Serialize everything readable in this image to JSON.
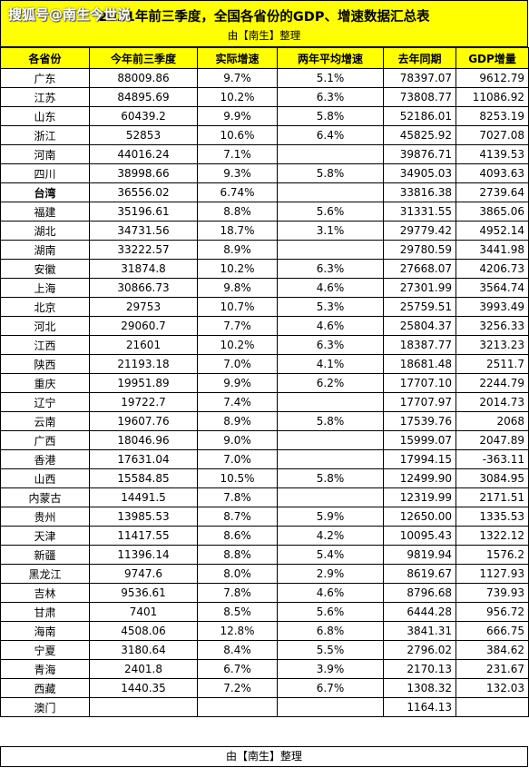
{
  "header": {
    "title": "2021年前三季度，全国各省份的GDP、增速数据汇总表",
    "subtitle": "由【南生】整理",
    "watermark": "搜狐号@南生今世说"
  },
  "table": {
    "columns": [
      "各省份",
      "今年前三季度",
      "实际增速",
      "两年平均增速",
      "去年同期",
      "GDP增量"
    ],
    "rows": [
      [
        "广东",
        "88009.86",
        "9.7%",
        "5.1%",
        "78397.07",
        "9612.79"
      ],
      [
        "江苏",
        "84895.69",
        "10.2%",
        "6.3%",
        "73808.77",
        "11086.92"
      ],
      [
        "山东",
        "60439.2",
        "9.9%",
        "5.8%",
        "52186.01",
        "8253.19"
      ],
      [
        "浙江",
        "52853",
        "10.6%",
        "6.4%",
        "45825.92",
        "7027.08"
      ],
      [
        "河南",
        "44016.24",
        "7.1%",
        "",
        "39876.71",
        "4139.53"
      ],
      [
        "四川",
        "38998.66",
        "9.3%",
        "5.8%",
        "34905.03",
        "4093.63"
      ],
      [
        "台湾",
        "36556.02",
        "6.74%",
        "",
        "33816.38",
        "2739.64"
      ],
      [
        "福建",
        "35196.61",
        "8.8%",
        "5.6%",
        "31331.55",
        "3865.06"
      ],
      [
        "湖北",
        "34731.56",
        "18.7%",
        "3.1%",
        "29779.42",
        "4952.14"
      ],
      [
        "湖南",
        "33222.57",
        "8.9%",
        "",
        "29780.59",
        "3441.98"
      ],
      [
        "安徽",
        "31874.8",
        "10.2%",
        "6.3%",
        "27668.07",
        "4206.73"
      ],
      [
        "上海",
        "30866.73",
        "9.8%",
        "4.6%",
        "27301.99",
        "3564.74"
      ],
      [
        "北京",
        "29753",
        "10.7%",
        "5.3%",
        "25759.51",
        "3993.49"
      ],
      [
        "河北",
        "29060.7",
        "7.7%",
        "4.6%",
        "25804.37",
        "3256.33"
      ],
      [
        "江西",
        "21601",
        "10.2%",
        "6.3%",
        "18387.77",
        "3213.23"
      ],
      [
        "陕西",
        "21193.18",
        "7.0%",
        "4.1%",
        "18681.48",
        "2511.7"
      ],
      [
        "重庆",
        "19951.89",
        "9.9%",
        "6.2%",
        "17707.10",
        "2244.79"
      ],
      [
        "辽宁",
        "19722.7",
        "7.4%",
        "",
        "17707.97",
        "2014.73"
      ],
      [
        "云南",
        "19607.76",
        "8.9%",
        "5.8%",
        "17539.76",
        "2068"
      ],
      [
        "广西",
        "18046.96",
        "9.0%",
        "",
        "15999.07",
        "2047.89"
      ],
      [
        "香港",
        "17631.04",
        "7.0%",
        "",
        "17994.15",
        "-363.11"
      ],
      [
        "山西",
        "15584.85",
        "10.5%",
        "5.8%",
        "12499.90",
        "3084.95"
      ],
      [
        "内蒙古",
        "14491.5",
        "7.8%",
        "",
        "12319.99",
        "2171.51"
      ],
      [
        "贵州",
        "13985.53",
        "8.7%",
        "5.9%",
        "12650.00",
        "1335.53"
      ],
      [
        "天津",
        "11417.55",
        "8.6%",
        "4.2%",
        "10095.43",
        "1322.12"
      ],
      [
        "新疆",
        "11396.14",
        "8.8%",
        "5.4%",
        "9819.94",
        "1576.2"
      ],
      [
        "黑龙江",
        "9747.6",
        "8.0%",
        "2.9%",
        "8619.67",
        "1127.93"
      ],
      [
        "吉林",
        "9536.61",
        "7.8%",
        "4.6%",
        "8796.68",
        "739.93"
      ],
      [
        "甘肃",
        "7401",
        "8.5%",
        "5.6%",
        "6444.28",
        "956.72"
      ],
      [
        "海南",
        "4508.06",
        "12.8%",
        "6.8%",
        "3841.31",
        "666.75"
      ],
      [
        "宁夏",
        "3180.64",
        "8.4%",
        "5.5%",
        "2796.02",
        "384.62"
      ],
      [
        "青海",
        "2401.8",
        "6.7%",
        "3.9%",
        "2170.13",
        "231.67"
      ],
      [
        "西藏",
        "1440.35",
        "7.2%",
        "6.7%",
        "1308.32",
        "132.03"
      ],
      [
        "澳门",
        "",
        "",
        "",
        "1164.13",
        ""
      ]
    ]
  },
  "footer": {
    "text": "由【南生】整理"
  },
  "colors": {
    "header_bg": "#ffff00",
    "border": "#000000"
  }
}
